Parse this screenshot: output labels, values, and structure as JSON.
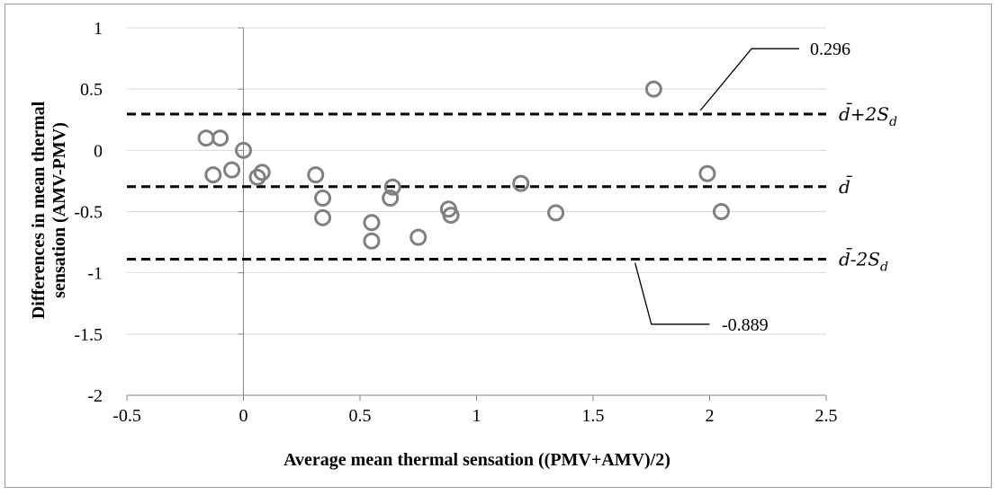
{
  "chart_data": {
    "type": "scatter",
    "title": "",
    "xlabel": "Average mean thermal sensation  ((PMV+AMV)/2)",
    "ylabel_line1": "Differences in mean thermal",
    "ylabel_line2": "sensation (AMV-PMV)",
    "xlim": [
      -0.5,
      2.5
    ],
    "ylim": [
      -2,
      1
    ],
    "x_ticks": [
      -0.5,
      0,
      0.5,
      1,
      1.5,
      2,
      2.5
    ],
    "x_tick_labels": [
      "-0.5",
      "0",
      "0.5",
      "1",
      "1.5",
      "2",
      "2.5"
    ],
    "y_ticks": [
      -2,
      -1.5,
      -1,
      -0.5,
      0,
      0.5,
      1
    ],
    "y_tick_labels": [
      "-2",
      "-1.5",
      "-1",
      "-0.5",
      "0",
      "0.5",
      "1"
    ],
    "grid": "horizontal",
    "marker": "open-circle",
    "marker_color": "#808080",
    "points": [
      {
        "x": -0.16,
        "y": 0.1
      },
      {
        "x": -0.1,
        "y": 0.1
      },
      {
        "x": -0.13,
        "y": -0.2
      },
      {
        "x": -0.05,
        "y": -0.16
      },
      {
        "x": 0.0,
        "y": 0.0
      },
      {
        "x": 0.06,
        "y": -0.22
      },
      {
        "x": 0.08,
        "y": -0.18
      },
      {
        "x": 0.31,
        "y": -0.2
      },
      {
        "x": 0.34,
        "y": -0.39
      },
      {
        "x": 0.34,
        "y": -0.55
      },
      {
        "x": 0.55,
        "y": -0.59
      },
      {
        "x": 0.55,
        "y": -0.74
      },
      {
        "x": 0.63,
        "y": -0.39
      },
      {
        "x": 0.64,
        "y": -0.3
      },
      {
        "x": 0.75,
        "y": -0.71
      },
      {
        "x": 0.88,
        "y": -0.48
      },
      {
        "x": 0.89,
        "y": -0.53
      },
      {
        "x": 1.19,
        "y": -0.27
      },
      {
        "x": 1.34,
        "y": -0.51
      },
      {
        "x": 1.76,
        "y": 0.5
      },
      {
        "x": 1.99,
        "y": -0.19
      },
      {
        "x": 2.05,
        "y": -0.5
      }
    ],
    "reference_lines": [
      {
        "y": 0.296,
        "style": "dashed",
        "label": "d̄+2S",
        "subscript": "d",
        "value_label": "0.296"
      },
      {
        "y": -0.2965,
        "style": "dashed",
        "label": "d̄",
        "subscript": ""
      },
      {
        "y": -0.889,
        "style": "dashed",
        "label": "d̄-2S",
        "subscript": "d",
        "value_label": "-0.889"
      }
    ]
  }
}
